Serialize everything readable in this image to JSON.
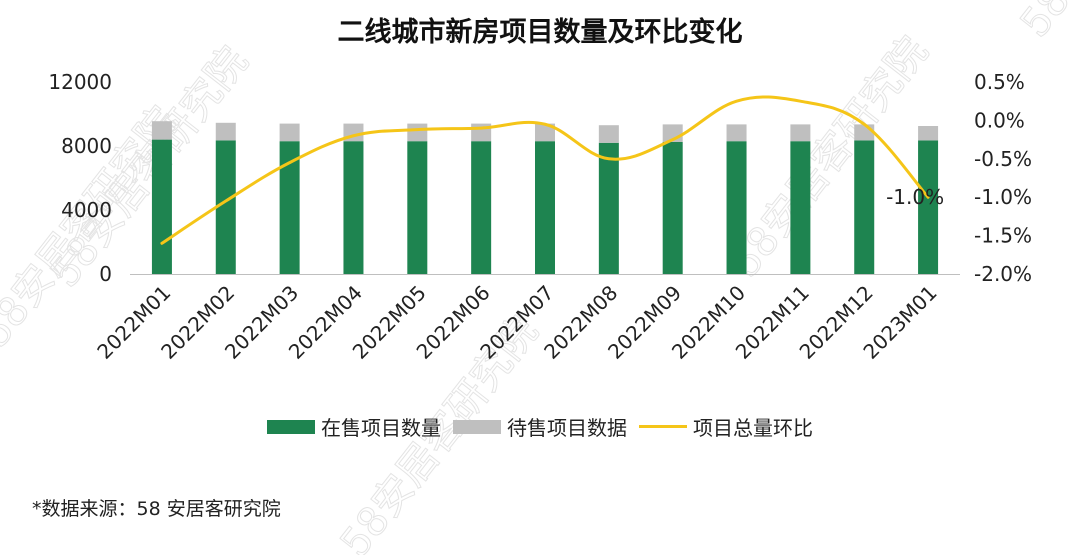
{
  "title": "二线城市新房项目数量及环比变化",
  "source": "*数据来源：58 安居客研究院",
  "watermark": "58安居客研究院",
  "colors": {
    "on_sale": "#1e8450",
    "pending": "#bfbfbf",
    "line": "#f5c518",
    "axis": "#222222",
    "grid": "#d9d9d9"
  },
  "chart_data": {
    "type": "bar",
    "stacked": true,
    "secondary_axis": true,
    "categories": [
      "2022M01",
      "2022M02",
      "2022M03",
      "2022M04",
      "2022M05",
      "2022M06",
      "2022M07",
      "2022M08",
      "2022M09",
      "2022M10",
      "2022M11",
      "2022M12",
      "2023M01"
    ],
    "series": [
      {
        "name": "在售项目数量",
        "type": "bar",
        "axis": "left",
        "values": [
          8400,
          8350,
          8300,
          8300,
          8300,
          8300,
          8300,
          8200,
          8250,
          8300,
          8300,
          8350,
          8350
        ]
      },
      {
        "name": "待售项目数据",
        "type": "bar",
        "axis": "left",
        "values": [
          1150,
          1100,
          1100,
          1100,
          1100,
          1100,
          1100,
          1100,
          1100,
          1050,
          1050,
          1000,
          900
        ]
      },
      {
        "name": "项目总量环比",
        "type": "line",
        "axis": "right",
        "unit": "%",
        "values": [
          -1.6,
          -1.05,
          -0.55,
          -0.2,
          -0.12,
          -0.1,
          -0.05,
          -0.5,
          -0.25,
          0.25,
          0.25,
          -0.05,
          -1.0
        ]
      }
    ],
    "annotation": {
      "index": 12,
      "text": "-1.0%"
    },
    "ylim_left": [
      0,
      12000
    ],
    "yticks_left": [
      "0",
      "4000",
      "8000",
      "12000"
    ],
    "ylim_right": [
      -2.0,
      0.5
    ],
    "yticks_right": [
      "-2.0%",
      "-1.5%",
      "-1.0%",
      "-0.5%",
      "0.0%",
      "0.5%"
    ],
    "grid": true,
    "legend_position": "bottom"
  }
}
